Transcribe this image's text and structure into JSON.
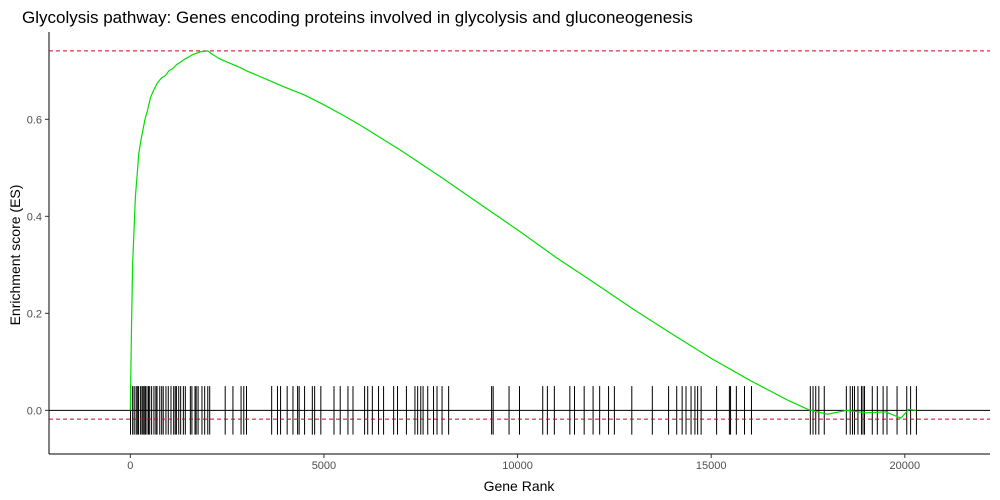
{
  "chart_data": {
    "type": "line",
    "title": "Glycolysis pathway: Genes encoding proteins involved in glycolysis and gluconeogenesis",
    "xlabel": "Gene Rank",
    "ylabel": "Enrichment score (ES)",
    "xlim": [
      -2100,
      22200
    ],
    "ylim": [
      -0.09,
      0.78
    ],
    "x_ticks": [
      0,
      5000,
      10000,
      15000,
      20000
    ],
    "x_tick_labels": [
      "0",
      "5000",
      "10000",
      "15000",
      "20000"
    ],
    "y_ticks": [
      0.0,
      0.2,
      0.4,
      0.6
    ],
    "y_tick_labels": [
      "0.0",
      "0.2",
      "0.4",
      "0.6"
    ],
    "grid": false,
    "colors": {
      "es_curve": "#00dd00",
      "hits": "#000000",
      "zero_line": "#000000",
      "threshold_lines": "#cc0022"
    },
    "hlines": {
      "zero": 0.0,
      "max_es": 0.741,
      "min_es": -0.018
    },
    "series": [
      {
        "x": [
          0,
          30,
          60,
          100,
          130,
          180,
          220,
          280,
          330,
          380,
          450,
          520,
          600,
          700,
          800,
          900,
          1000,
          1100,
          1200,
          1300,
          1400,
          1500,
          1600,
          1700,
          1800,
          1900,
          2000,
          2100,
          2300,
          2500,
          2800,
          3000,
          3500,
          4000,
          4500,
          5000,
          5500,
          6000,
          7000,
          8000,
          9000,
          10000,
          11000,
          12000,
          13000,
          14000,
          15000,
          16000,
          17000,
          17500,
          18000,
          18500,
          19000,
          19500,
          19900,
          20100,
          20300
        ],
        "y": [
          0.0,
          0.17,
          0.3,
          0.38,
          0.44,
          0.49,
          0.53,
          0.56,
          0.58,
          0.6,
          0.62,
          0.645,
          0.66,
          0.675,
          0.685,
          0.69,
          0.7,
          0.705,
          0.713,
          0.718,
          0.724,
          0.728,
          0.733,
          0.736,
          0.739,
          0.74,
          0.741,
          0.735,
          0.725,
          0.718,
          0.708,
          0.7,
          0.683,
          0.666,
          0.65,
          0.63,
          0.608,
          0.585,
          0.535,
          0.482,
          0.427,
          0.372,
          0.315,
          0.262,
          0.208,
          0.157,
          0.107,
          0.062,
          0.02,
          0.002,
          -0.008,
          0.0,
          -0.005,
          -0.003,
          -0.016,
          0.002,
          0.0
        ]
      }
    ],
    "hits": [
      5,
      60,
      100,
      150,
      180,
      210,
      260,
      300,
      330,
      360,
      390,
      430,
      470,
      500,
      550,
      610,
      660,
      690,
      760,
      810,
      850,
      920,
      980,
      1050,
      1120,
      1160,
      1190,
      1250,
      1300,
      1370,
      1420,
      1550,
      1590,
      1670,
      1700,
      1750,
      1850,
      1920,
      2000,
      2050,
      2450,
      2650,
      2860,
      2930,
      3000,
      3650,
      3800,
      3880,
      4050,
      4200,
      4320,
      4360,
      4500,
      4700,
      4760,
      4920,
      5260,
      5420,
      5620,
      5750,
      6050,
      6130,
      6250,
      6410,
      6540,
      6800,
      6900,
      7130,
      7350,
      7420,
      7500,
      7560,
      7680,
      7830,
      7920,
      8050,
      8220,
      9330,
      9370,
      9780,
      10050,
      10650,
      10770,
      10950,
      11350,
      11470,
      11720,
      11950,
      12120,
      12350,
      12500,
      12950,
      13480,
      13900,
      14110,
      14250,
      14350,
      14480,
      14580,
      14650,
      14740,
      15140,
      15470,
      15500,
      15650,
      15860,
      16040,
      17560,
      17630,
      17700,
      17780,
      17920,
      18490,
      18590,
      18650,
      18700,
      18790,
      18880,
      18920,
      18960,
      19160,
      19290,
      19440,
      19540,
      19800,
      20050,
      20150,
      20300
    ]
  }
}
